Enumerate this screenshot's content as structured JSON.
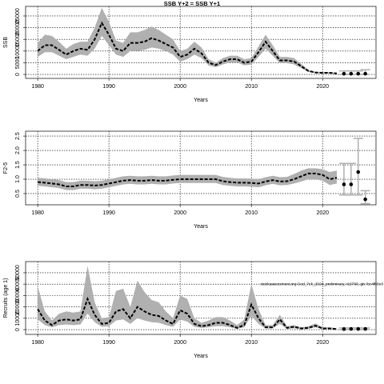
{
  "chart_data": [
    {
      "type": "line",
      "title": "SSB Y+2 = SSB Y+1",
      "xlabel": "Years",
      "ylabel": "SSB",
      "grid": true,
      "line_color": "#000000",
      "band_color": "#b0b0b0",
      "xlim": [
        1978.3,
        2027.5
      ],
      "xticks": [
        1980,
        1990,
        2000,
        2010,
        2020
      ],
      "ylim": [
        -1700,
        29100
      ],
      "yticks": [
        0,
        5000,
        10000,
        15000,
        20000,
        25000
      ],
      "x": [
        1980,
        1981,
        1982,
        1983,
        1984,
        1985,
        1986,
        1987,
        1988,
        1989,
        1990,
        1991,
        1992,
        1993,
        1994,
        1995,
        1996,
        1997,
        1998,
        1999,
        2000,
        2001,
        2002,
        2003,
        2004,
        2005,
        2006,
        2007,
        2008,
        2009,
        2010,
        2011,
        2012,
        2013,
        2014,
        2015,
        2016,
        2017,
        2018,
        2019,
        2020,
        2021,
        2022
      ],
      "values": [
        10000,
        12500,
        12500,
        10500,
        8500,
        10000,
        11000,
        10500,
        15000,
        22000,
        17000,
        11000,
        10000,
        13500,
        13500,
        14000,
        15500,
        14500,
        13000,
        11500,
        7500,
        8500,
        11000,
        9000,
        5000,
        4000,
        5500,
        6500,
        6500,
        5000,
        5500,
        9500,
        14000,
        10000,
        6000,
        6000,
        5500,
        3500,
        1500,
        800,
        700,
        700,
        400
      ],
      "upper": [
        13500,
        17000,
        16500,
        14000,
        11000,
        13000,
        14000,
        14000,
        20000,
        28500,
        22500,
        14500,
        13500,
        18000,
        18000,
        19000,
        20500,
        19000,
        17000,
        15000,
        10000,
        11000,
        14000,
        11500,
        6500,
        5000,
        7000,
        8000,
        8000,
        6500,
        7000,
        12000,
        17000,
        12500,
        7500,
        7500,
        7000,
        4500,
        2000,
        1100,
        1000,
        1000,
        700
      ],
      "lower": [
        7500,
        9500,
        9500,
        8000,
        6500,
        7500,
        8500,
        8000,
        11000,
        16500,
        12500,
        8500,
        7500,
        10000,
        10000,
        10500,
        11500,
        11000,
        10000,
        8500,
        5500,
        6500,
        8500,
        7000,
        3800,
        3100,
        4300,
        5100,
        5100,
        3900,
        4200,
        7500,
        11000,
        8000,
        4800,
        4800,
        4300,
        2700,
        1100,
        550,
        450,
        450,
        200
      ],
      "forecast": {
        "x": [
          2023,
          2024,
          2025,
          2026
        ],
        "values": [
          300,
          300,
          300,
          300
        ],
        "lower": [
          0,
          0,
          0,
          0
        ],
        "upper": [
          1500,
          1500,
          1500,
          2000
        ]
      }
    },
    {
      "type": "line",
      "xlabel": "Years",
      "ylabel": "F2-5",
      "grid": true,
      "line_color": "#000000",
      "band_color": "#b0b0b0",
      "xlim": [
        1978.3,
        2027.5
      ],
      "xticks": [
        1980,
        1990,
        2000,
        2010,
        2020
      ],
      "ylim": [
        0.11,
        2.67
      ],
      "yticks": [
        0.5,
        {
          "value": 1,
          "label": "1.0"
        },
        1.5,
        {
          "value": 2,
          "label": "2.0"
        },
        2.5
      ],
      "x": [
        1980,
        1981,
        1982,
        1983,
        1984,
        1985,
        1986,
        1987,
        1988,
        1989,
        1990,
        1991,
        1992,
        1993,
        1994,
        1995,
        1996,
        1997,
        1998,
        1999,
        2000,
        2001,
        2002,
        2003,
        2004,
        2005,
        2006,
        2007,
        2008,
        2009,
        2010,
        2011,
        2012,
        2013,
        2014,
        2015,
        2016,
        2017,
        2018,
        2019,
        2020,
        2021,
        2022
      ],
      "values": [
        0.9,
        0.88,
        0.85,
        0.82,
        0.75,
        0.75,
        0.8,
        0.8,
        0.78,
        0.8,
        0.85,
        0.9,
        0.95,
        0.97,
        0.95,
        0.95,
        0.97,
        0.95,
        0.95,
        0.98,
        1.0,
        1.0,
        1.0,
        1.0,
        1.0,
        1.0,
        0.93,
        0.9,
        0.88,
        0.88,
        0.87,
        0.85,
        0.92,
        0.97,
        0.92,
        0.93,
        1.0,
        1.1,
        1.2,
        1.2,
        1.15,
        1.0,
        1.05
      ],
      "upper": [
        1.05,
        1.03,
        1,
        0.97,
        0.9,
        0.9,
        0.95,
        0.95,
        0.93,
        0.95,
        1,
        1.05,
        1.1,
        1.12,
        1.1,
        1.1,
        1.12,
        1.1,
        1.1,
        1.13,
        1.15,
        1.15,
        1.15,
        1.15,
        1.15,
        1.15,
        1.08,
        1.05,
        1.03,
        1.03,
        1.02,
        1,
        1.07,
        1.12,
        1.07,
        1.08,
        1.18,
        1.3,
        1.38,
        1.38,
        1.35,
        1.25,
        1.3
      ],
      "lower": [
        0.77,
        0.75,
        0.72,
        0.69,
        0.62,
        0.62,
        0.67,
        0.67,
        0.65,
        0.67,
        0.72,
        0.77,
        0.82,
        0.84,
        0.82,
        0.82,
        0.84,
        0.82,
        0.82,
        0.85,
        0.87,
        0.87,
        0.87,
        0.87,
        0.87,
        0.87,
        0.8,
        0.77,
        0.75,
        0.75,
        0.74,
        0.72,
        0.79,
        0.84,
        0.79,
        0.8,
        0.85,
        0.92,
        1,
        1,
        0.95,
        0.8,
        0.85
      ],
      "forecast": {
        "x": [
          2023,
          2024,
          2025,
          2026
        ],
        "values": [
          0.82,
          0.82,
          1.25,
          0.3
        ],
        "lower": [
          0.45,
          0.45,
          0.45,
          0.15
        ],
        "upper": [
          1.55,
          1.55,
          2.42,
          0.6
        ]
      }
    },
    {
      "type": "line",
      "xlabel": "Years",
      "ylabel": "Recruits (age 1)",
      "annotation": "stockassessment.org Cod_7ek_2024_preliminary, r16760, git: fcc4fb8e8",
      "grid": true,
      "line_color": "#000000",
      "band_color": "#b0b0b0",
      "xlim": [
        1978.3,
        2027.5
      ],
      "xticks": [
        1980,
        1990,
        2000,
        2010,
        2020
      ],
      "ylim": [
        -4200,
        59800
      ],
      "yticks": [
        0,
        10000,
        20000,
        30000,
        40000,
        50000
      ],
      "x": [
        1980,
        1981,
        1982,
        1983,
        1984,
        1985,
        1986,
        1987,
        1988,
        1989,
        1990,
        1991,
        1992,
        1993,
        1994,
        1995,
        1996,
        1997,
        1998,
        1999,
        2000,
        2001,
        2002,
        2003,
        2004,
        2005,
        2006,
        2007,
        2008,
        2009,
        2010,
        2011,
        2012,
        2013,
        2014,
        2015,
        2016,
        2017,
        2018,
        2019,
        2020,
        2021,
        2022
      ],
      "values": [
        18000,
        8000,
        4000,
        8000,
        9000,
        8000,
        9000,
        27000,
        13000,
        5000,
        6000,
        16000,
        18000,
        10000,
        20000,
        16000,
        13000,
        12000,
        8000,
        5000,
        17000,
        14000,
        5000,
        3000,
        4000,
        6000,
        6000,
        4000,
        1500,
        4000,
        22000,
        10000,
        2000,
        2000,
        9000,
        1500,
        2500,
        1000,
        1500,
        3500,
        1000,
        1000,
        500
      ],
      "upper": [
        38000,
        16000,
        8000,
        14000,
        16000,
        15000,
        16000,
        56000,
        24000,
        10000,
        11000,
        34000,
        36000,
        20000,
        43000,
        33000,
        26000,
        24000,
        16000,
        10000,
        30000,
        27000,
        10000,
        6000,
        8000,
        11000,
        11000,
        8000,
        4000,
        9000,
        40000,
        18000,
        4000,
        4000,
        13000,
        3000,
        4000,
        2000,
        3000,
        5500,
        2000,
        2000,
        1200
      ],
      "lower": [
        9000,
        4000,
        2000,
        4000,
        4500,
        4000,
        4500,
        14000,
        6500,
        2500,
        3000,
        8000,
        9000,
        5000,
        10000,
        8000,
        6500,
        6000,
        4000,
        2500,
        9000,
        7000,
        2500,
        1500,
        2000,
        3000,
        3000,
        2000,
        700,
        2000,
        12000,
        5000,
        1000,
        1000,
        5000,
        700,
        1200,
        500,
        700,
        2000,
        500,
        500,
        200
      ],
      "forecast": {
        "x": [
          2023,
          2024,
          2025,
          2026
        ],
        "values": [
          500,
          600,
          600,
          600
        ],
        "lower": [
          0,
          0,
          0,
          0
        ],
        "upper": [
          1500,
          1500,
          1500,
          1500
        ]
      }
    }
  ]
}
